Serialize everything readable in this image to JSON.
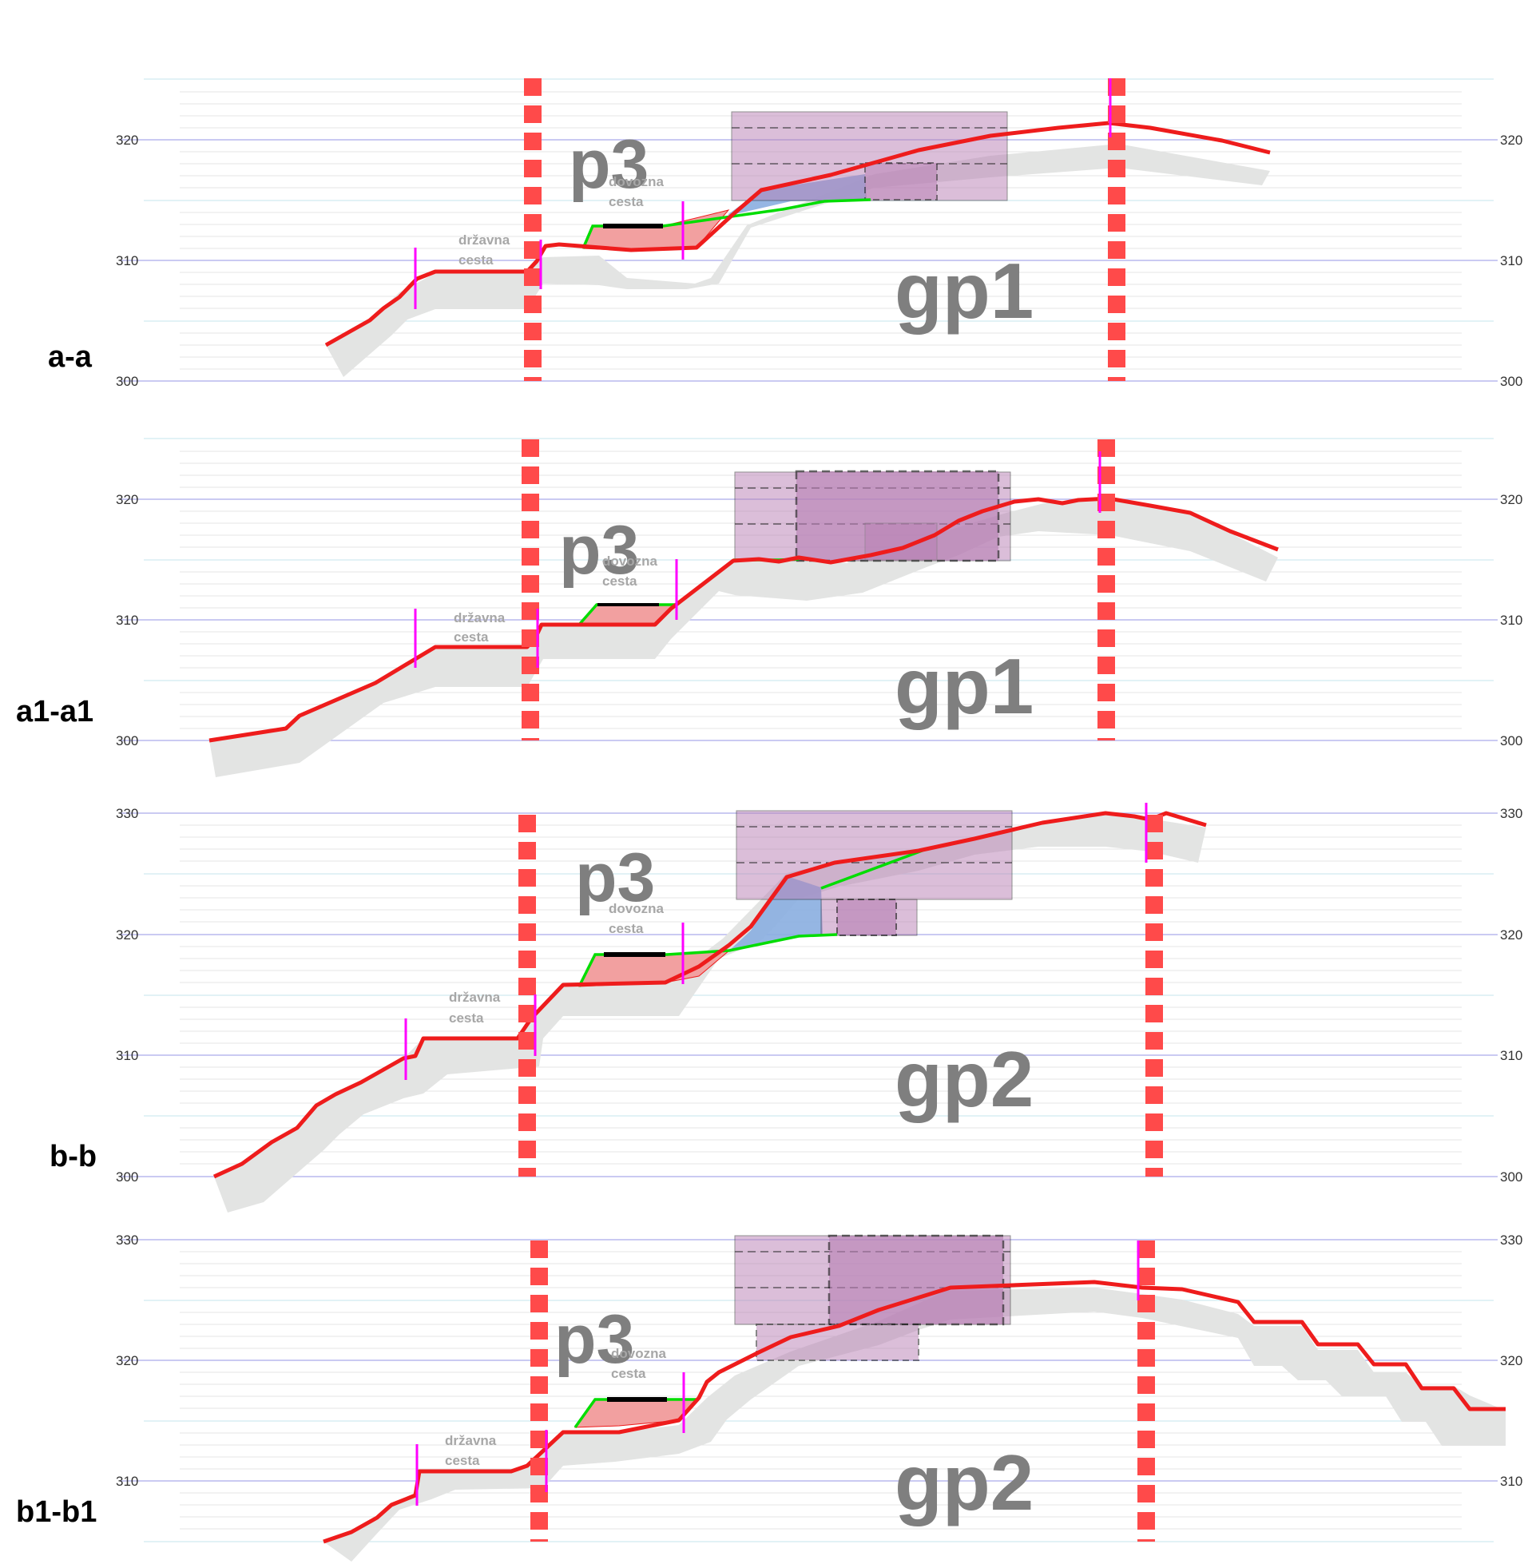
{
  "colors": {
    "terrain_line": "#ee1c1c",
    "terrain_shadow": "#e3e4e3",
    "boundary": "#ff4a4a",
    "marker": "#ff00ff",
    "platform": "#00dd00",
    "cut_fill": "#f2a0a0",
    "building": "#b87fb4",
    "excavation": "#8aaee0",
    "grid_major": "#b9b9ee",
    "grid_minor": "#d8eef4",
    "label_grey": "#7f7f7f"
  },
  "sections": [
    {
      "name": "a-a",
      "zone": "gp1",
      "plot": "p3",
      "road_label": [
        "državna",
        "cesta"
      ],
      "access_label": [
        "dovozna",
        "cesta"
      ],
      "elev_labels": [
        "320",
        "310",
        "300"
      ]
    },
    {
      "name": "a1-a1",
      "zone": "gp1",
      "plot": "p3",
      "road_label": [
        "državna",
        "cesta"
      ],
      "access_label": [
        "dovozna",
        "cesta"
      ],
      "elev_labels": [
        "320",
        "310",
        "300"
      ]
    },
    {
      "name": "b-b",
      "zone": "gp2",
      "plot": "p3",
      "road_label": [
        "državna",
        "cesta"
      ],
      "access_label": [
        "dovozna",
        "cesta"
      ],
      "elev_labels": [
        "330",
        "320",
        "310",
        "300"
      ]
    },
    {
      "name": "b1-b1",
      "zone": "gp2",
      "plot": "p3",
      "road_label": [
        "državna",
        "cesta"
      ],
      "access_label": [
        "dovozna",
        "cesta"
      ],
      "elev_labels": [
        "330",
        "320",
        "310"
      ]
    }
  ]
}
